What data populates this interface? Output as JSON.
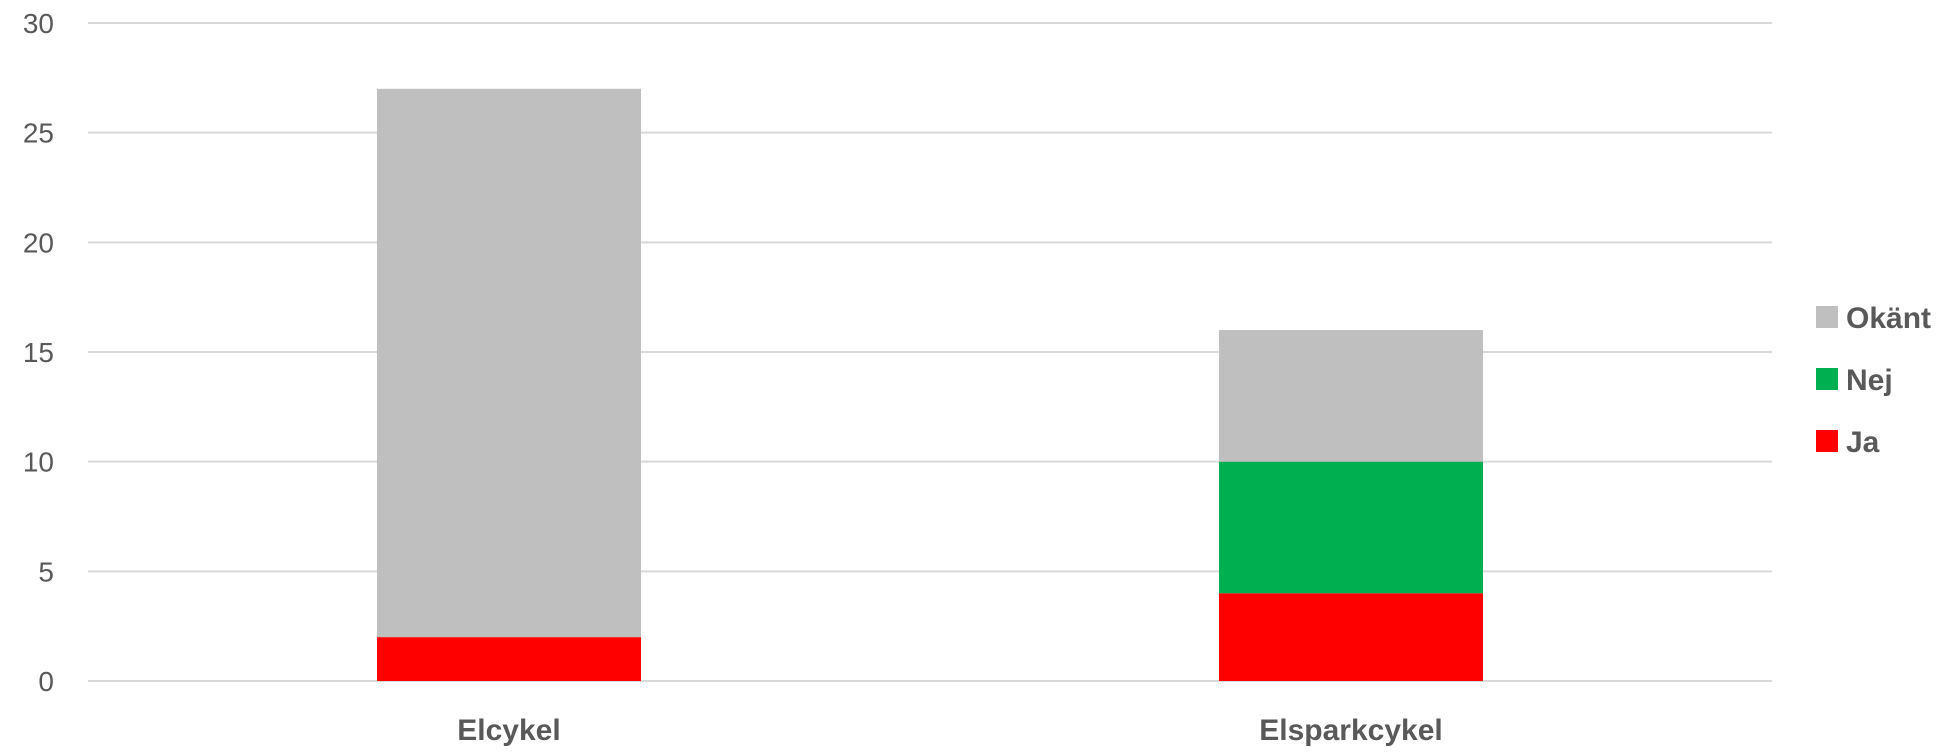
{
  "chart_data": {
    "type": "bar",
    "stacked": true,
    "categories": [
      "Elcykel",
      "Elsparkcykel"
    ],
    "series": [
      {
        "name": "Ja",
        "values": [
          2,
          4
        ],
        "color": "#ff0000"
      },
      {
        "name": "Nej",
        "values": [
          0,
          6
        ],
        "color": "#00b050"
      },
      {
        "name": "Okänt",
        "values": [
          25,
          6
        ],
        "color": "#bfbfbf"
      }
    ],
    "ylim": [
      0,
      30
    ],
    "yticks": [
      "0",
      "5",
      "10",
      "15",
      "20",
      "25",
      "30"
    ],
    "title": "",
    "xlabel": "",
    "ylabel": "",
    "grid": true,
    "legend": {
      "position": "right",
      "order": [
        "Okänt",
        "Nej",
        "Ja"
      ]
    }
  }
}
